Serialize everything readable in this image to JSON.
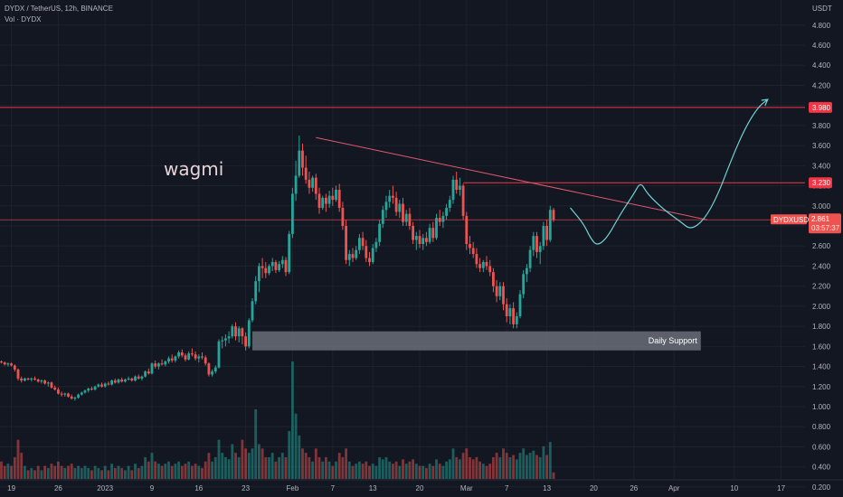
{
  "header": {
    "symbol_line": "DYDX / TetherUS, 12h, BINANCE",
    "volume_label": "Vol · DYDX"
  },
  "colors": {
    "up": "#26a69a",
    "down": "#ef5350",
    "level": "#f23645",
    "trend": "#e05a6c",
    "path": "#6fd3d6",
    "zone": "#6a6d78",
    "grid": "#1e222d",
    "background": "#131722"
  },
  "annotations": {
    "note": "wagmi",
    "support_label": "Daily Support"
  },
  "chart_data": {
    "type": "candlestick",
    "title": "DYDX / TetherUS, 12h, BINANCE",
    "ylabel": "USDT",
    "ylim": [
      0.1,
      5.05
    ],
    "yticks": [
      "0.200",
      "0.400",
      "0.600",
      "0.800",
      "1.000",
      "1.200",
      "1.400",
      "1.600",
      "1.800",
      "2.000",
      "2.200",
      "2.400",
      "2.600",
      "2.800",
      "3.000",
      "3.200",
      "3.400",
      "3.600",
      "3.800",
      "4.000",
      "4.200",
      "4.400",
      "4.600",
      "4.800"
    ],
    "ytick_values": [
      0.2,
      0.4,
      0.6,
      0.8,
      1.0,
      1.2,
      1.4,
      1.6,
      1.8,
      2.0,
      2.2,
      2.4,
      2.6,
      2.8,
      3.0,
      3.2,
      3.4,
      3.6,
      3.8,
      4.0,
      4.2,
      4.4,
      4.6,
      4.8
    ],
    "xticks": [
      {
        "label": "19",
        "bar": 3
      },
      {
        "label": "26",
        "bar": 17
      },
      {
        "label": "2023",
        "bar": 31
      },
      {
        "label": "9",
        "bar": 45
      },
      {
        "label": "16",
        "bar": 59
      },
      {
        "label": "23",
        "bar": 73
      },
      {
        "label": "Feb",
        "bar": 87
      },
      {
        "label": "7",
        "bar": 99
      },
      {
        "label": "13",
        "bar": 111
      },
      {
        "label": "20",
        "bar": 125
      },
      {
        "label": "Mar",
        "bar": 139
      },
      {
        "label": "7",
        "bar": 151
      },
      {
        "label": "13",
        "bar": 163
      },
      {
        "label": "20",
        "bar": 177
      },
      {
        "label": "26",
        "bar": 189
      },
      {
        "label": "Apr",
        "bar": 201
      },
      {
        "label": "10",
        "bar": 219
      },
      {
        "label": "17",
        "bar": 233
      }
    ],
    "candles": [
      [
        1.45,
        1.46,
        1.43,
        1.44,
        0.4
      ],
      [
        1.44,
        1.45,
        1.41,
        1.42,
        0.3
      ],
      [
        1.42,
        1.44,
        1.4,
        1.43,
        0.35
      ],
      [
        1.43,
        1.44,
        1.4,
        1.41,
        0.3
      ],
      [
        1.41,
        1.42,
        1.35,
        1.37,
        0.5
      ],
      [
        1.37,
        1.38,
        1.26,
        1.28,
        0.9
      ],
      [
        1.28,
        1.3,
        1.24,
        1.26,
        0.6
      ],
      [
        1.26,
        1.29,
        1.25,
        1.28,
        0.3
      ],
      [
        1.28,
        1.29,
        1.26,
        1.27,
        0.2
      ],
      [
        1.27,
        1.29,
        1.25,
        1.28,
        0.25
      ],
      [
        1.28,
        1.3,
        1.26,
        1.27,
        0.2
      ],
      [
        1.27,
        1.28,
        1.24,
        1.25,
        0.3
      ],
      [
        1.25,
        1.27,
        1.23,
        1.26,
        0.2
      ],
      [
        1.26,
        1.27,
        1.22,
        1.23,
        0.3
      ],
      [
        1.23,
        1.25,
        1.2,
        1.24,
        0.25
      ],
      [
        1.24,
        1.25,
        1.18,
        1.19,
        0.35
      ],
      [
        1.19,
        1.21,
        1.16,
        1.17,
        0.3
      ],
      [
        1.17,
        1.19,
        1.12,
        1.13,
        0.4
      ],
      [
        1.13,
        1.15,
        1.1,
        1.12,
        0.3
      ],
      [
        1.12,
        1.14,
        1.1,
        1.13,
        0.25
      ],
      [
        1.13,
        1.14,
        1.09,
        1.1,
        0.3
      ],
      [
        1.1,
        1.12,
        1.07,
        1.08,
        0.35
      ],
      [
        1.08,
        1.1,
        1.06,
        1.09,
        0.25
      ],
      [
        1.09,
        1.13,
        1.08,
        1.12,
        0.3
      ],
      [
        1.12,
        1.15,
        1.11,
        1.14,
        0.25
      ],
      [
        1.14,
        1.17,
        1.13,
        1.16,
        0.3
      ],
      [
        1.16,
        1.19,
        1.14,
        1.18,
        0.25
      ],
      [
        1.18,
        1.2,
        1.16,
        1.17,
        0.2
      ],
      [
        1.17,
        1.21,
        1.16,
        1.2,
        0.3
      ],
      [
        1.2,
        1.23,
        1.19,
        1.22,
        0.25
      ],
      [
        1.22,
        1.24,
        1.19,
        1.2,
        0.2
      ],
      [
        1.2,
        1.24,
        1.19,
        1.23,
        0.3
      ],
      [
        1.23,
        1.25,
        1.21,
        1.22,
        0.2
      ],
      [
        1.22,
        1.27,
        1.21,
        1.26,
        0.35
      ],
      [
        1.26,
        1.28,
        1.23,
        1.24,
        0.25
      ],
      [
        1.24,
        1.28,
        1.23,
        1.27,
        0.3
      ],
      [
        1.27,
        1.29,
        1.24,
        1.25,
        0.25
      ],
      [
        1.25,
        1.28,
        1.24,
        1.27,
        0.2
      ],
      [
        1.27,
        1.3,
        1.26,
        1.28,
        0.3
      ],
      [
        1.28,
        1.29,
        1.25,
        1.26,
        0.2
      ],
      [
        1.26,
        1.31,
        1.25,
        1.3,
        0.35
      ],
      [
        1.3,
        1.32,
        1.27,
        1.28,
        0.25
      ],
      [
        1.28,
        1.31,
        1.26,
        1.3,
        0.3
      ],
      [
        1.3,
        1.36,
        1.29,
        1.35,
        0.5
      ],
      [
        1.35,
        1.38,
        1.32,
        1.33,
        0.4
      ],
      [
        1.33,
        1.44,
        1.32,
        1.43,
        0.6
      ],
      [
        1.43,
        1.46,
        1.38,
        1.4,
        0.4
      ],
      [
        1.4,
        1.44,
        1.37,
        1.43,
        0.35
      ],
      [
        1.43,
        1.47,
        1.41,
        1.42,
        0.3
      ],
      [
        1.42,
        1.46,
        1.4,
        1.45,
        0.35
      ],
      [
        1.45,
        1.5,
        1.43,
        1.48,
        0.4
      ],
      [
        1.48,
        1.52,
        1.44,
        1.46,
        0.3
      ],
      [
        1.46,
        1.51,
        1.44,
        1.5,
        0.35
      ],
      [
        1.5,
        1.56,
        1.48,
        1.54,
        0.4
      ],
      [
        1.54,
        1.57,
        1.49,
        1.51,
        0.3
      ],
      [
        1.51,
        1.53,
        1.45,
        1.47,
        0.35
      ],
      [
        1.47,
        1.55,
        1.46,
        1.53,
        0.4
      ],
      [
        1.53,
        1.58,
        1.5,
        1.52,
        0.3
      ],
      [
        1.52,
        1.55,
        1.46,
        1.48,
        0.35
      ],
      [
        1.48,
        1.52,
        1.44,
        1.5,
        0.3
      ],
      [
        1.5,
        1.54,
        1.47,
        1.49,
        0.25
      ],
      [
        1.49,
        1.51,
        1.41,
        1.43,
        0.4
      ],
      [
        1.43,
        1.44,
        1.3,
        1.32,
        0.6
      ],
      [
        1.32,
        1.37,
        1.3,
        1.35,
        0.4
      ],
      [
        1.35,
        1.41,
        1.33,
        1.39,
        0.5
      ],
      [
        1.39,
        1.67,
        1.38,
        1.65,
        0.9
      ],
      [
        1.65,
        1.7,
        1.58,
        1.66,
        0.6
      ],
      [
        1.66,
        1.72,
        1.6,
        1.68,
        0.5
      ],
      [
        1.68,
        1.75,
        1.63,
        1.7,
        0.45
      ],
      [
        1.7,
        1.82,
        1.68,
        1.8,
        0.8
      ],
      [
        1.8,
        1.84,
        1.66,
        1.7,
        0.6
      ],
      [
        1.7,
        1.8,
        1.64,
        1.78,
        0.5
      ],
      [
        1.78,
        1.79,
        1.62,
        1.7,
        0.9
      ],
      [
        1.7,
        1.74,
        1.56,
        1.6,
        0.7
      ],
      [
        1.6,
        1.88,
        1.58,
        1.86,
        0.6
      ],
      [
        1.86,
        2.08,
        1.84,
        2.05,
        0.7
      ],
      [
        2.05,
        2.3,
        2.02,
        2.25,
        1.6
      ],
      [
        2.25,
        2.43,
        2.14,
        2.4,
        0.8
      ],
      [
        2.4,
        2.48,
        2.28,
        2.38,
        0.7
      ],
      [
        2.38,
        2.44,
        2.28,
        2.33,
        0.5
      ],
      [
        2.33,
        2.42,
        2.31,
        2.4,
        0.5
      ],
      [
        2.4,
        2.48,
        2.35,
        2.44,
        0.6
      ],
      [
        2.44,
        2.46,
        2.33,
        2.36,
        0.4
      ],
      [
        2.36,
        2.45,
        2.34,
        2.42,
        0.5
      ],
      [
        2.42,
        2.5,
        2.38,
        2.46,
        0.6
      ],
      [
        2.46,
        2.49,
        2.3,
        2.34,
        0.5
      ],
      [
        2.34,
        2.75,
        2.32,
        2.72,
        1.1
      ],
      [
        2.72,
        3.18,
        2.68,
        3.12,
        2.7
      ],
      [
        3.12,
        3.45,
        3.05,
        3.3,
        1.5
      ],
      [
        3.3,
        3.7,
        3.28,
        3.55,
        1.0
      ],
      [
        3.55,
        3.62,
        3.3,
        3.38,
        0.7
      ],
      [
        3.38,
        3.5,
        3.22,
        3.26,
        0.6
      ],
      [
        3.26,
        3.34,
        3.12,
        3.18,
        0.5
      ],
      [
        3.18,
        3.3,
        3.14,
        3.28,
        0.4
      ],
      [
        3.28,
        3.32,
        3.06,
        3.12,
        0.7
      ],
      [
        3.12,
        3.18,
        2.92,
        2.98,
        0.5
      ],
      [
        2.98,
        3.1,
        2.96,
        3.08,
        0.4
      ],
      [
        3.08,
        3.12,
        2.94,
        3.02,
        0.5
      ],
      [
        3.02,
        3.15,
        2.98,
        3.1,
        0.4
      ],
      [
        3.1,
        3.18,
        3.0,
        3.06,
        0.3
      ],
      [
        3.06,
        3.2,
        3.04,
        3.16,
        0.4
      ],
      [
        3.16,
        3.22,
        2.94,
        2.98,
        0.6
      ],
      [
        2.98,
        3.04,
        2.76,
        2.8,
        0.5
      ],
      [
        2.8,
        2.86,
        2.42,
        2.46,
        0.7
      ],
      [
        2.46,
        2.56,
        2.4,
        2.52,
        0.4
      ],
      [
        2.52,
        2.58,
        2.44,
        2.48,
        0.3
      ],
      [
        2.48,
        2.6,
        2.46,
        2.56,
        0.35
      ],
      [
        2.56,
        2.72,
        2.52,
        2.68,
        0.4
      ],
      [
        2.68,
        2.74,
        2.56,
        2.6,
        0.35
      ],
      [
        2.6,
        2.66,
        2.44,
        2.48,
        0.4
      ],
      [
        2.48,
        2.54,
        2.4,
        2.44,
        0.3
      ],
      [
        2.44,
        2.62,
        2.42,
        2.58,
        0.35
      ],
      [
        2.58,
        2.68,
        2.54,
        2.64,
        0.3
      ],
      [
        2.64,
        2.86,
        2.6,
        2.82,
        0.5
      ],
      [
        2.82,
        3.0,
        2.78,
        2.96,
        0.45
      ],
      [
        2.96,
        3.1,
        2.88,
        3.04,
        0.5
      ],
      [
        3.04,
        3.16,
        2.98,
        3.1,
        0.4
      ],
      [
        3.1,
        3.2,
        3.02,
        3.08,
        0.35
      ],
      [
        3.08,
        3.14,
        2.9,
        2.94,
        0.4
      ],
      [
        2.94,
        3.06,
        2.88,
        3.02,
        0.3
      ],
      [
        3.02,
        3.08,
        2.8,
        2.84,
        0.45
      ],
      [
        2.84,
        2.96,
        2.8,
        2.92,
        0.35
      ],
      [
        2.92,
        2.98,
        2.76,
        2.8,
        0.4
      ],
      [
        2.8,
        2.84,
        2.62,
        2.66,
        0.45
      ],
      [
        2.66,
        2.74,
        2.56,
        2.7,
        0.35
      ],
      [
        2.7,
        2.76,
        2.58,
        2.62,
        0.3
      ],
      [
        2.62,
        2.72,
        2.56,
        2.68,
        0.3
      ],
      [
        2.68,
        2.74,
        2.6,
        2.64,
        0.25
      ],
      [
        2.64,
        2.82,
        2.62,
        2.78,
        0.35
      ],
      [
        2.78,
        2.84,
        2.64,
        2.68,
        0.3
      ],
      [
        2.68,
        2.92,
        2.66,
        2.88,
        0.45
      ],
      [
        2.88,
        2.96,
        2.8,
        2.84,
        0.35
      ],
      [
        2.84,
        2.94,
        2.78,
        2.9,
        0.3
      ],
      [
        2.9,
        3.02,
        2.86,
        2.98,
        0.4
      ],
      [
        2.98,
        3.1,
        2.94,
        3.06,
        0.45
      ],
      [
        3.06,
        3.3,
        3.02,
        3.26,
        0.7
      ],
      [
        3.26,
        3.34,
        3.12,
        3.16,
        0.5
      ],
      [
        3.16,
        3.28,
        3.1,
        3.2,
        0.45
      ],
      [
        3.2,
        3.22,
        2.86,
        2.9,
        0.6
      ],
      [
        2.9,
        2.94,
        2.56,
        2.62,
        0.7
      ],
      [
        2.62,
        2.7,
        2.52,
        2.58,
        0.5
      ],
      [
        2.58,
        2.64,
        2.48,
        2.52,
        0.45
      ],
      [
        2.52,
        2.58,
        2.38,
        2.42,
        0.5
      ],
      [
        2.42,
        2.48,
        2.34,
        2.38,
        0.4
      ],
      [
        2.38,
        2.46,
        2.34,
        2.44,
        0.35
      ],
      [
        2.44,
        2.5,
        2.36,
        2.4,
        0.3
      ],
      [
        2.4,
        2.46,
        2.3,
        2.34,
        0.35
      ],
      [
        2.34,
        2.38,
        2.14,
        2.2,
        0.5
      ],
      [
        2.2,
        2.26,
        2.04,
        2.1,
        0.6
      ],
      [
        2.1,
        2.24,
        2.06,
        2.2,
        0.5
      ],
      [
        2.2,
        2.24,
        1.96,
        2.02,
        0.7
      ],
      [
        2.02,
        2.08,
        1.84,
        1.9,
        0.6
      ],
      [
        1.9,
        2.02,
        1.82,
        1.98,
        0.5
      ],
      [
        1.98,
        2.04,
        1.78,
        1.82,
        0.55
      ],
      [
        1.82,
        1.94,
        1.78,
        1.9,
        0.45
      ],
      [
        1.9,
        2.16,
        1.88,
        2.12,
        0.6
      ],
      [
        2.12,
        2.36,
        2.08,
        2.32,
        0.7
      ],
      [
        2.32,
        2.42,
        2.24,
        2.38,
        0.55
      ],
      [
        2.38,
        2.6,
        2.34,
        2.56,
        0.6
      ],
      [
        2.56,
        2.74,
        2.5,
        2.7,
        0.65
      ],
      [
        2.7,
        2.74,
        2.48,
        2.54,
        0.55
      ],
      [
        2.54,
        2.64,
        2.42,
        2.6,
        0.5
      ],
      [
        2.6,
        2.84,
        2.56,
        2.8,
        0.75
      ],
      [
        2.8,
        2.86,
        2.6,
        2.66,
        0.55
      ],
      [
        2.66,
        3.0,
        2.64,
        2.96,
        0.85
      ],
      [
        2.96,
        2.98,
        2.84,
        2.86,
        0.15
      ]
    ],
    "levels": [
      {
        "label": "3.980",
        "value": 3.98
      },
      {
        "label": "3.230",
        "value": 3.23
      }
    ],
    "current_price": {
      "label": "DYDXUSDT",
      "value": 2.861,
      "price_label": "2.861",
      "countdown": "03:57:37"
    },
    "support_zone": {
      "label": "Daily Support",
      "low": 1.56,
      "high": 1.75,
      "from_bar": 75,
      "to_bar": 209
    },
    "trendline": [
      {
        "bar": 94,
        "price": 3.68
      },
      {
        "bar": 211,
        "price": 2.86
      }
    ],
    "projection_path": [
      {
        "bar": 170,
        "price": 2.98
      },
      {
        "bar": 174,
        "price": 2.82
      },
      {
        "bar": 176,
        "price": 2.68
      },
      {
        "bar": 178,
        "price": 2.6
      },
      {
        "bar": 181,
        "price": 2.68
      },
      {
        "bar": 185,
        "price": 2.92
      },
      {
        "bar": 189,
        "price": 3.12
      },
      {
        "bar": 191,
        "price": 3.24
      },
      {
        "bar": 193,
        "price": 3.12
      },
      {
        "bar": 198,
        "price": 2.96
      },
      {
        "bar": 203,
        "price": 2.84
      },
      {
        "bar": 206,
        "price": 2.76
      },
      {
        "bar": 210,
        "price": 2.86
      },
      {
        "bar": 214,
        "price": 3.1
      },
      {
        "bar": 218,
        "price": 3.45
      },
      {
        "bar": 222,
        "price": 3.76
      },
      {
        "bar": 226,
        "price": 3.98
      },
      {
        "bar": 229,
        "price": 4.06
      }
    ]
  }
}
